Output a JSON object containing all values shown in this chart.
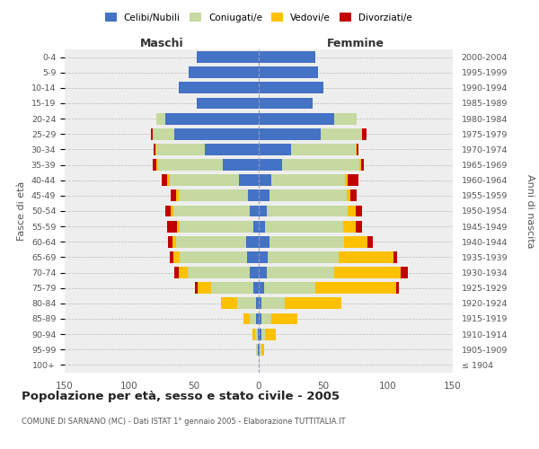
{
  "age_groups": [
    "100+",
    "95-99",
    "90-94",
    "85-89",
    "80-84",
    "75-79",
    "70-74",
    "65-69",
    "60-64",
    "55-59",
    "50-54",
    "45-49",
    "40-44",
    "35-39",
    "30-34",
    "25-29",
    "20-24",
    "15-19",
    "10-14",
    "5-9",
    "0-4"
  ],
  "birth_years": [
    "≤ 1904",
    "1905-1909",
    "1910-1914",
    "1915-1919",
    "1920-1924",
    "1925-1929",
    "1930-1934",
    "1935-1939",
    "1940-1944",
    "1945-1949",
    "1950-1954",
    "1955-1959",
    "1960-1964",
    "1965-1969",
    "1970-1974",
    "1975-1979",
    "1980-1984",
    "1985-1989",
    "1990-1994",
    "1995-1999",
    "2000-2004"
  ],
  "maschi_celibi": [
    0,
    1,
    1,
    2,
    2,
    4,
    7,
    9,
    10,
    4,
    7,
    8,
    15,
    28,
    42,
    65,
    72,
    48,
    62,
    54,
    48
  ],
  "maschi_coniugati": [
    0,
    1,
    2,
    5,
    15,
    33,
    48,
    52,
    54,
    57,
    59,
    54,
    54,
    50,
    37,
    17,
    7,
    0,
    0,
    0,
    0
  ],
  "maschi_vedovi": [
    0,
    0,
    2,
    5,
    12,
    10,
    7,
    5,
    3,
    2,
    2,
    2,
    2,
    1,
    1,
    0,
    0,
    0,
    0,
    0,
    0
  ],
  "maschi_divorziati": [
    0,
    0,
    0,
    0,
    0,
    2,
    3,
    3,
    3,
    8,
    4,
    4,
    4,
    3,
    1,
    1,
    0,
    0,
    0,
    0,
    0
  ],
  "femmine_celibi": [
    0,
    1,
    2,
    2,
    2,
    4,
    6,
    7,
    8,
    5,
    6,
    8,
    10,
    18,
    25,
    48,
    58,
    42,
    50,
    46,
    44
  ],
  "femmine_coniugati": [
    0,
    1,
    3,
    8,
    18,
    40,
    52,
    55,
    58,
    60,
    63,
    60,
    57,
    60,
    50,
    32,
    18,
    0,
    0,
    0,
    0
  ],
  "femmine_vedovi": [
    0,
    2,
    8,
    20,
    44,
    62,
    52,
    42,
    18,
    10,
    6,
    3,
    2,
    1,
    1,
    0,
    0,
    0,
    0,
    0,
    0
  ],
  "femmine_divorziati": [
    0,
    0,
    0,
    0,
    0,
    2,
    5,
    3,
    4,
    5,
    5,
    5,
    8,
    2,
    1,
    3,
    0,
    0,
    0,
    0,
    0
  ],
  "color_celibi": "#4472c4",
  "color_coniugati": "#c5d9a0",
  "color_vedovi": "#ffc000",
  "color_divorziati": "#c00000",
  "title": "Popolazione per età, sesso e stato civile - 2005",
  "subtitle": "COMUNE DI SARNANO (MC) - Dati ISTAT 1° gennaio 2005 - Elaborazione TUTTITALIA.IT",
  "label_maschi": "Maschi",
  "label_femmine": "Femmine",
  "ylabel_left": "Fasce di età",
  "ylabel_right": "Anni di nascita",
  "xlim": 150,
  "legend_labels": [
    "Celibi/Nubili",
    "Coniugati/e",
    "Vedovi/e",
    "Divorziati/e"
  ],
  "bg_color": "#ffffff",
  "plot_bg_color": "#eeeeee",
  "grid_color": "#bbbbbb"
}
